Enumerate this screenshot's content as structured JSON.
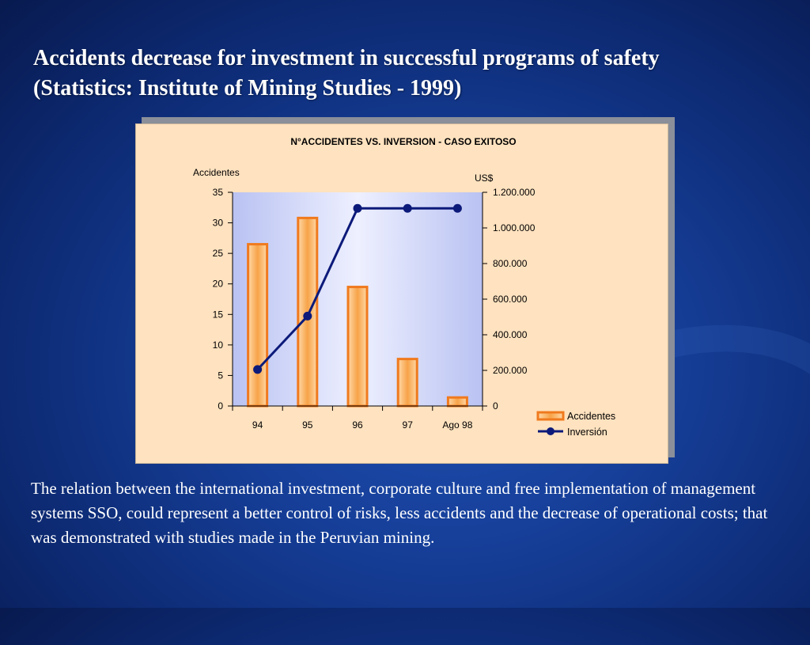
{
  "slide": {
    "title_line1": "Accidents decrease for investment in successful programs of  safety",
    "title_line2": "(Statistics: Institute of  Mining Studies - 1999)",
    "body": "The relation  between the international investment, corporate culture and  free implementation of management systems SSO, could represent a better control of risks, less accidents and the decrease of operational costs; that was demonstrated with studies made in the Peruvian mining."
  },
  "chart_data": {
    "type": "bar",
    "title": "N°ACCIDENTES VS. INVERSION - CASO EXITOSO",
    "categories": [
      "94",
      "95",
      "96",
      "97",
      "Ago 98"
    ],
    "y_left": {
      "label": "Accidentes",
      "range": [
        0,
        35
      ],
      "ticks": [
        0,
        5,
        10,
        15,
        20,
        25,
        30,
        35
      ],
      "tick_labels": [
        "0",
        "5",
        "10",
        "15",
        "20",
        "25",
        "30",
        "35"
      ]
    },
    "y_right": {
      "label": "US$",
      "range": [
        0,
        1200000
      ],
      "ticks": [
        0,
        200000,
        400000,
        600000,
        800000,
        1000000,
        1200000
      ],
      "tick_labels": [
        "0",
        "200.000",
        "400.000",
        "600.000",
        "800.000",
        "1.000.000",
        "1.200.000"
      ]
    },
    "series": [
      {
        "name": "Accidentes",
        "kind": "bar",
        "axis": "left",
        "color": "#f07a1e",
        "values": [
          26.5,
          30.8,
          19.5,
          7.7,
          1.4
        ]
      },
      {
        "name": "Inversión",
        "kind": "line",
        "axis": "right",
        "color": "#0c1a7a",
        "values": [
          205000,
          505000,
          1110000,
          1110000,
          1110000
        ]
      }
    ],
    "legend": "bottom-right",
    "grid": false
  }
}
